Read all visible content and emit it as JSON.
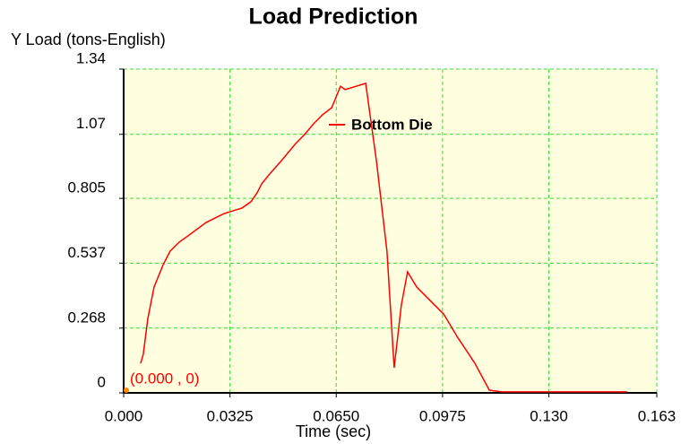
{
  "chart_data": {
    "type": "line",
    "title": "Load Prediction",
    "y_label": "Y Load (tons-English)",
    "x_label": "Time (sec)",
    "annotation": "(0.000 , 0)",
    "xlim": [
      0,
      0.163
    ],
    "ylim": [
      0,
      1.34
    ],
    "xticks": [
      {
        "value": 0,
        "label": "0.000"
      },
      0.0325,
      {
        "value": 0.065,
        "label": "0.0650"
      },
      0.0975,
      {
        "value": 0.13,
        "label": "0.130"
      },
      0.163
    ],
    "yticks": [
      0,
      0.268,
      0.537,
      0.805,
      1.07,
      1.34
    ],
    "grid": true,
    "background": "#ffffe0",
    "grid_color": "#33dd33",
    "x": [
      0.0052,
      0.006,
      0.0074,
      0.0093,
      0.0121,
      0.0142,
      0.017,
      0.0197,
      0.0252,
      0.0307,
      0.0362,
      0.0389,
      0.0408,
      0.0422,
      0.0444,
      0.0485,
      0.0526,
      0.0553,
      0.0581,
      0.0608,
      0.0636,
      0.0663,
      0.0677,
      0.0704,
      0.074,
      0.0773,
      0.0805,
      0.0827,
      0.0849,
      0.0868,
      0.0896,
      0.0937,
      0.0978,
      0.1019,
      0.1074,
      0.1118,
      0.1156,
      0.154
    ],
    "series": [
      {
        "name": "Bottom Die",
        "color": "#ff0000",
        "values": [
          0.122,
          0.16,
          0.308,
          0.438,
          0.531,
          0.586,
          0.624,
          0.65,
          0.705,
          0.742,
          0.765,
          0.791,
          0.828,
          0.865,
          0.902,
          0.965,
          1.032,
          1.069,
          1.114,
          1.151,
          1.18,
          1.269,
          1.255,
          1.266,
          1.281,
          0.958,
          0.586,
          0.104,
          0.364,
          0.501,
          0.438,
          0.382,
          0.327,
          0.234,
          0.122,
          0.011,
          0.004,
          0.004
        ]
      }
    ]
  }
}
